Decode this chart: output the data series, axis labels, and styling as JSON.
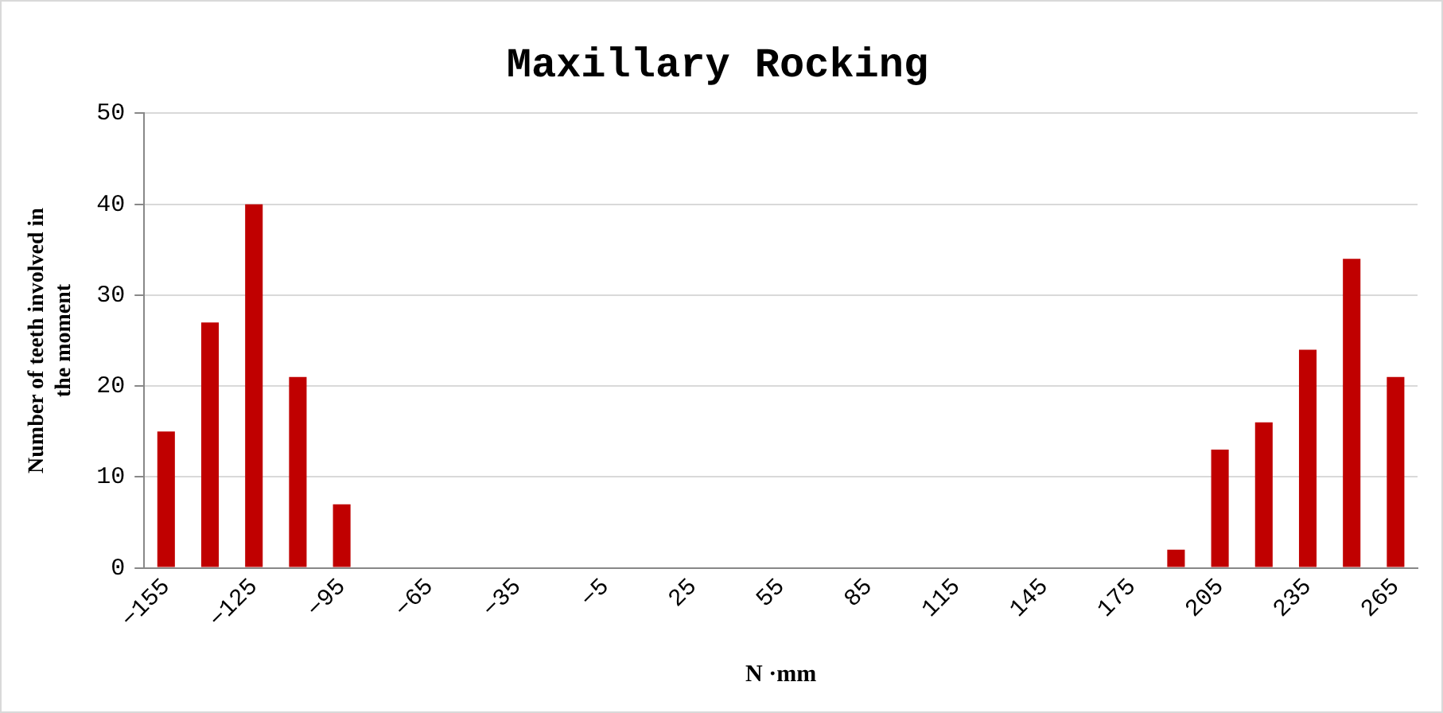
{
  "chart_data": {
    "type": "bar",
    "title": "Maxillary Rocking",
    "xlabel": "N ·mm",
    "ylabel": "Number of teeth involved in the moment",
    "categories": [
      "−155",
      null,
      "−125",
      null,
      "−95",
      null,
      "−65",
      null,
      "−35",
      null,
      "−5",
      null,
      "25",
      null,
      "55",
      null,
      "85",
      null,
      "115",
      null,
      "145",
      null,
      "175",
      null,
      "205",
      null,
      "235",
      null,
      "265"
    ],
    "values": [
      15,
      27,
      40,
      21,
      7,
      0,
      0,
      0,
      0,
      0,
      0,
      0,
      0,
      0,
      0,
      0,
      0,
      0,
      0,
      0,
      0,
      0,
      0,
      2,
      13,
      16,
      24,
      34,
      21
    ],
    "color": "#c00000",
    "ylim": [
      0,
      50
    ],
    "yticks": [
      0,
      10,
      20,
      30,
      40,
      50
    ],
    "grid": "y",
    "legend": false
  }
}
